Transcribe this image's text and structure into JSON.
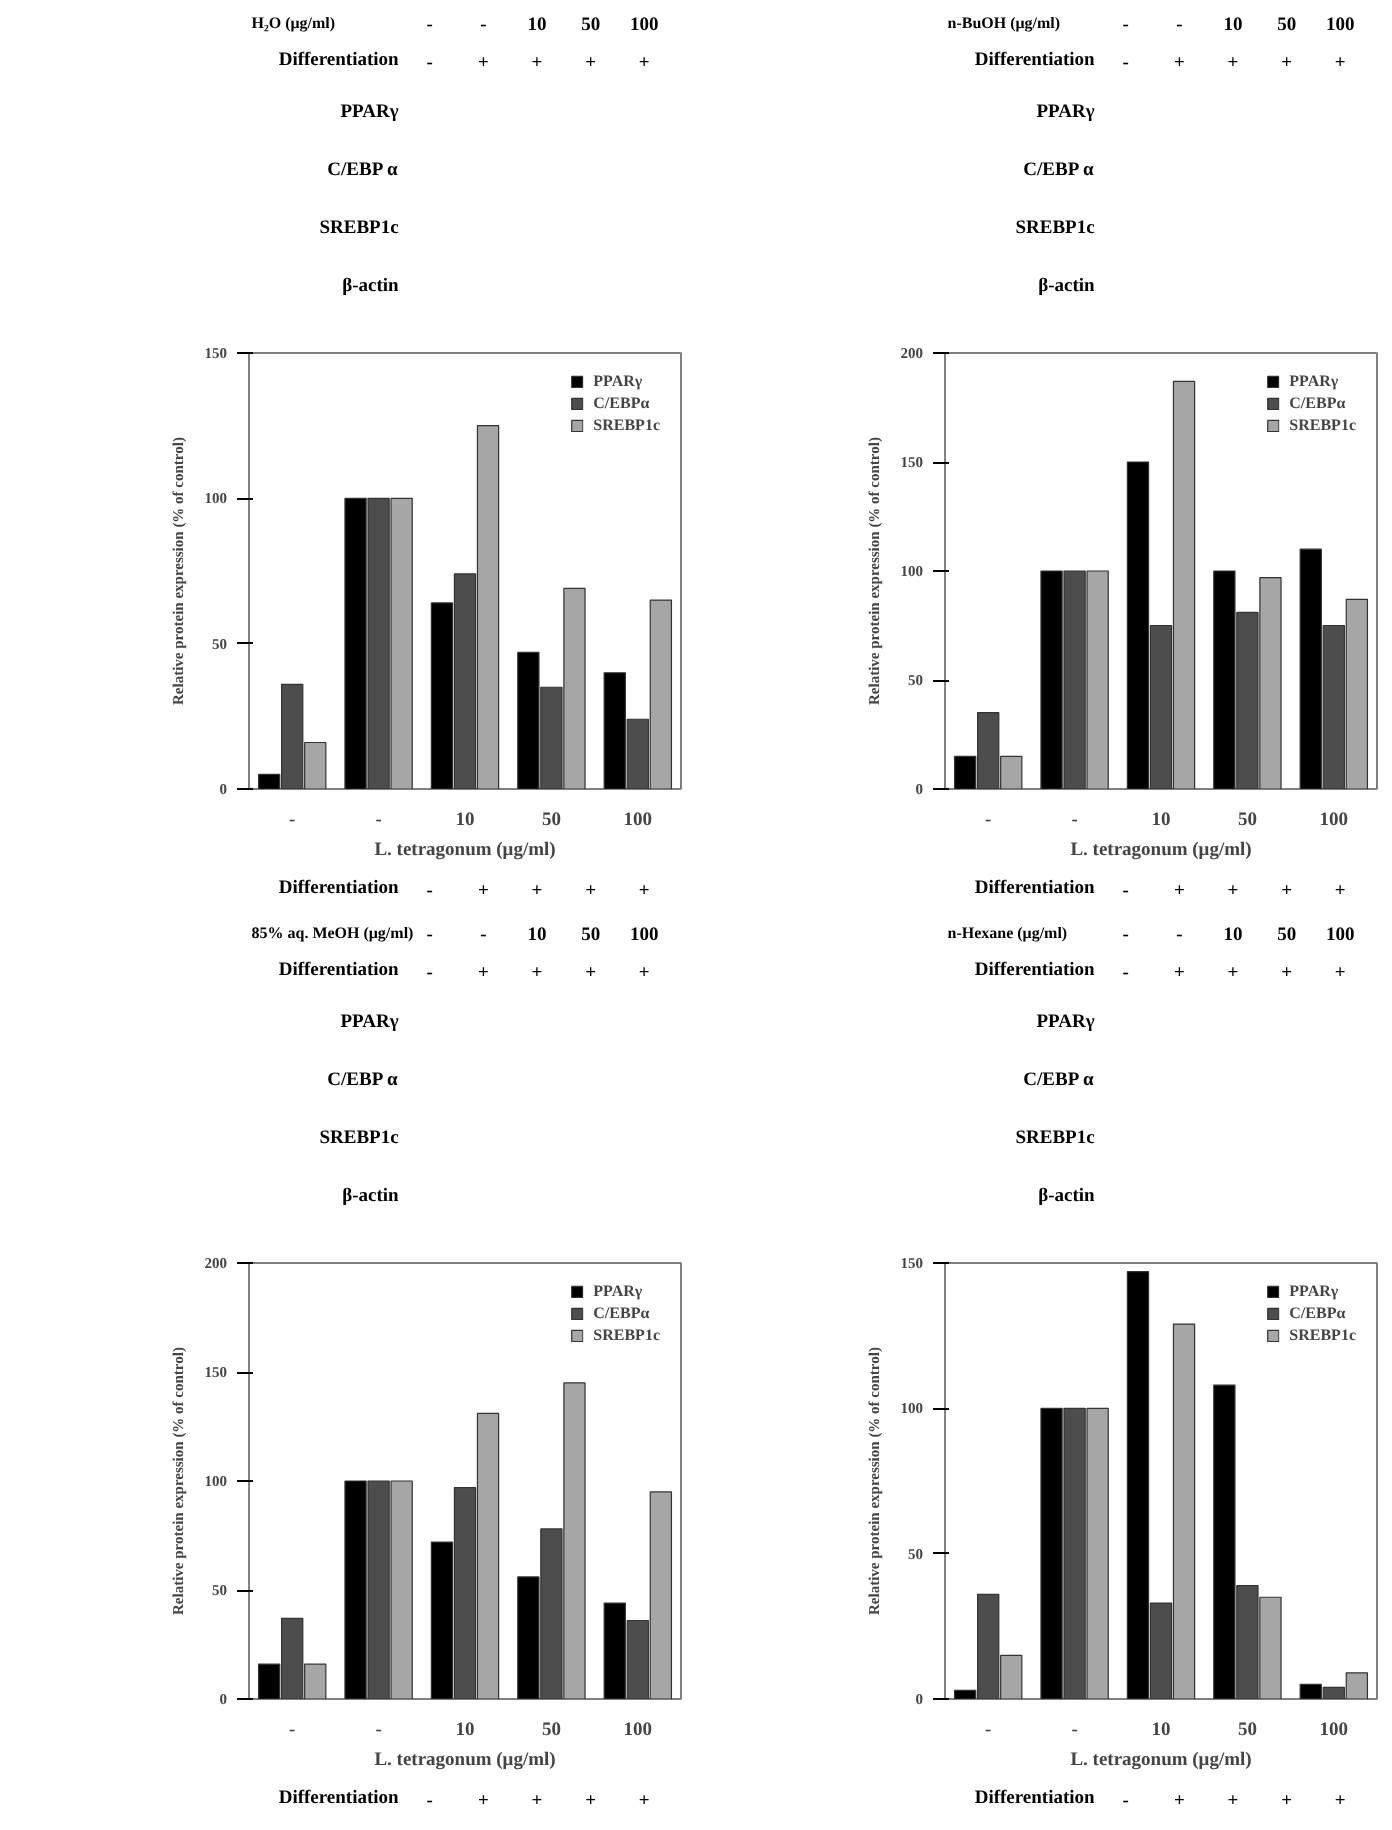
{
  "chart_data": [
    {
      "type": "bar",
      "title": "H₂O (μg/ml)",
      "xlabel": "L. tetragonum (μg/ml)",
      "ylabel": "Relative protein expression (% of control)",
      "categories": [
        "-",
        "-",
        "10",
        "50",
        "100"
      ],
      "annotations": [
        "Differentiation",
        "-",
        "+",
        "+",
        "+",
        "+",
        "PPARγ",
        "C/EBP α",
        "SREBP1c",
        "β-actin"
      ],
      "ylim": [
        0,
        150
      ],
      "yticks": [
        0,
        50,
        100,
        150
      ],
      "legend": "top right",
      "grid": false,
      "series": [
        {
          "name": "PPARγ",
          "color": "#000000",
          "values": [
            5,
            100,
            64,
            47,
            40
          ]
        },
        {
          "name": "C/EBPα",
          "color": "#4d4d4d",
          "values": [
            36,
            100,
            74,
            35,
            24
          ]
        },
        {
          "name": "SREBP1c",
          "color": "#a6a6a6",
          "values": [
            16,
            100,
            125,
            69,
            65
          ]
        }
      ]
    },
    {
      "type": "bar",
      "title": "n-BuOH (μg/ml)",
      "xlabel": "L. tetragonum (μg/ml)",
      "ylabel": "Relative protein expression (% of control)",
      "categories": [
        "-",
        "-",
        "10",
        "50",
        "100"
      ],
      "annotations": [
        "Differentiation",
        "-",
        "+",
        "+",
        "+",
        "+",
        "PPARγ",
        "C/EBP α",
        "SREBP1c",
        "β-actin"
      ],
      "ylim": [
        0,
        200
      ],
      "yticks": [
        0,
        50,
        100,
        150,
        200
      ],
      "legend": "top right",
      "grid": false,
      "series": [
        {
          "name": "PPARγ",
          "color": "#000000",
          "values": [
            15,
            100,
            150,
            100,
            110
          ]
        },
        {
          "name": "C/EBPα",
          "color": "#4d4d4d",
          "values": [
            35,
            100,
            75,
            81,
            75
          ]
        },
        {
          "name": "SREBP1c",
          "color": "#a6a6a6",
          "values": [
            15,
            100,
            187,
            97,
            87
          ]
        }
      ]
    },
    {
      "type": "bar",
      "title": "85% aq. MeOH  (μg/ml)",
      "xlabel": "L. tetragonum (μg/ml)",
      "ylabel": "Relative protein expression (% of control)",
      "categories": [
        "-",
        "-",
        "10",
        "50",
        "100"
      ],
      "annotations": [
        "Differentiation",
        "-",
        "+",
        "+",
        "+",
        "+",
        "PPARγ",
        "C/EBP α",
        "SREBP1c",
        "β-actin"
      ],
      "ylim": [
        0,
        200
      ],
      "yticks": [
        0,
        50,
        100,
        150,
        200
      ],
      "legend": "top right",
      "grid": false,
      "series": [
        {
          "name": "PPARγ",
          "color": "#000000",
          "values": [
            16,
            100,
            72,
            56,
            44
          ]
        },
        {
          "name": "C/EBPα",
          "color": "#4d4d4d",
          "values": [
            37,
            100,
            97,
            78,
            36
          ]
        },
        {
          "name": "SREBP1c",
          "color": "#a6a6a6",
          "values": [
            16,
            100,
            131,
            145,
            95
          ]
        }
      ]
    },
    {
      "type": "bar",
      "title": "n-Hexane (μg/ml)",
      "xlabel": "L. tetragonum (μg/ml)",
      "ylabel": "Relative protein expression (% of control)",
      "categories": [
        "-",
        "-",
        "10",
        "50",
        "100"
      ],
      "annotations": [
        "Differentiation",
        "-",
        "+",
        "+",
        "+",
        "+",
        "PPARγ",
        "C/EBP α",
        "SREBP1c",
        "β-actin"
      ],
      "ylim": [
        0,
        150
      ],
      "yticks": [
        0,
        50,
        100,
        150
      ],
      "legend": "top right",
      "grid": false,
      "series": [
        {
          "name": "PPARγ",
          "color": "#000000",
          "values": [
            3,
            100,
            147,
            108,
            5
          ]
        },
        {
          "name": "C/EBPα",
          "color": "#4d4d4d",
          "values": [
            36,
            100,
            33,
            39,
            4
          ]
        },
        {
          "name": "SREBP1c",
          "color": "#a6a6a6",
          "values": [
            15,
            100,
            129,
            35,
            9
          ]
        }
      ]
    }
  ]
}
